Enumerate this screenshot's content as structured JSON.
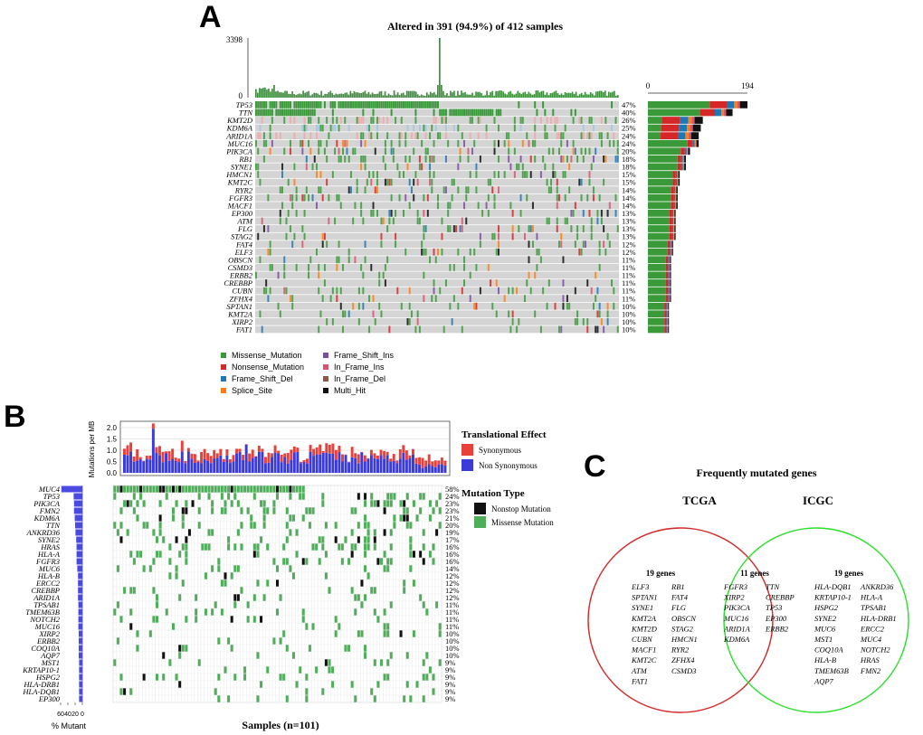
{
  "panel_labels": {
    "a": "A",
    "b": "B",
    "c": "C"
  },
  "panel_a": {
    "title": "Altered in 391 (94.9%) of 412 samples",
    "tmb_axis": {
      "max": "3398",
      "min": "0"
    },
    "bar_axis": {
      "min": "0",
      "max": "194"
    },
    "genes": [
      "TP53",
      "TTN",
      "KMT2D",
      "KDM6A",
      "ARID1A",
      "MUC16",
      "PIK3CA",
      "RB1",
      "SYNE1",
      "HMCN1",
      "KMT2C",
      "RYR2",
      "FGFR3",
      "MACF1",
      "EP300",
      "ATM",
      "FLG",
      "STAG2",
      "FAT4",
      "ELF3",
      "OBSCN",
      "CSMD3",
      "ERBB2",
      "CREBBP",
      "CUBN",
      "ZFHX4",
      "SPTAN1",
      "KMT2A",
      "XIRP2",
      "FAT1"
    ],
    "percents": [
      "47%",
      "40%",
      "26%",
      "25%",
      "24%",
      "24%",
      "20%",
      "18%",
      "18%",
      "15%",
      "15%",
      "14%",
      "14%",
      "14%",
      "13%",
      "13%",
      "13%",
      "13%",
      "12%",
      "12%",
      "11%",
      "11%",
      "11%",
      "11%",
      "11%",
      "11%",
      "10%",
      "10%",
      "10%",
      "10%"
    ],
    "counts": [
      194,
      165,
      107,
      103,
      99,
      99,
      82,
      74,
      74,
      62,
      62,
      58,
      58,
      58,
      54,
      54,
      54,
      54,
      49,
      49,
      45,
      45,
      45,
      45,
      45,
      45,
      41,
      41,
      41,
      41
    ],
    "legend": [
      {
        "label": "Missense_Mutation",
        "color": "#3a9a3a"
      },
      {
        "label": "Nonsense_Mutation",
        "color": "#d62728"
      },
      {
        "label": "Frame_Shift_Del",
        "color": "#1f77b4"
      },
      {
        "label": "Splice_Site",
        "color": "#ff7f0e"
      },
      {
        "label": "Frame_Shift_Ins",
        "color": "#7b4ea3"
      },
      {
        "label": "In_Frame_Ins",
        "color": "#d9536f"
      },
      {
        "label": "In_Frame_Del",
        "color": "#8c564b"
      },
      {
        "label": "Multi_Hit",
        "color": "#111111"
      }
    ]
  },
  "panel_b": {
    "tmb_ylabel": "Mutations per MB",
    "tmb_ticks": [
      "0.0",
      "0.5",
      "1.0",
      "1.5",
      "2.0"
    ],
    "effect_title": "Translational Effect",
    "effect_legend": [
      {
        "label": "Synonymous",
        "color": "#e8413c"
      },
      {
        "label": "Non Synonymous",
        "color": "#3b3bd9"
      }
    ],
    "type_title": "Mutation Type",
    "type_legend": [
      {
        "label": "Nonstop Mutation",
        "color": "#111111"
      },
      {
        "label": "Missense Mutation",
        "color": "#4fae5a"
      }
    ],
    "genes": [
      "MUC4",
      "TP53",
      "PIK3CA",
      "FMN2",
      "KDM6A",
      "TTN",
      "ANKRD36",
      "SYNE2",
      "HRAS",
      "HLA-A",
      "FGFR3",
      "MUC6",
      "HLA-B",
      "ERCC2",
      "CREBBP",
      "ARID1A",
      "TPSAB1",
      "TMEM63B",
      "NOTCH2",
      "MUC16",
      "XIRP2",
      "ERBB2",
      "COQ10A",
      "AQP7",
      "MST1",
      "KRTAP10-1",
      "HSPG2",
      "HLA-DRB1",
      "HLA-DQB1",
      "EP300"
    ],
    "percents": [
      "58%",
      "24%",
      "23%",
      "23%",
      "21%",
      "20%",
      "19%",
      "17%",
      "16%",
      "16%",
      "16%",
      "14%",
      "12%",
      "12%",
      "12%",
      "12%",
      "11%",
      "11%",
      "11%",
      "11%",
      "10%",
      "10%",
      "10%",
      "10%",
      "9%",
      "9%",
      "9%",
      "9%",
      "9%",
      "9%"
    ],
    "xlabel": "Samples (n=101)",
    "mutant_label": "% Mutant",
    "mutant_ticks": [
      "60",
      "40",
      "20",
      "0"
    ]
  },
  "panel_c": {
    "title": "Frequently mutated genes",
    "left_label": "TCGA",
    "right_label": "ICGC",
    "left_count": "19 genes",
    "center_count": "11 genes",
    "right_count": "19 genes",
    "left_genes": [
      "ELF3",
      "RB1",
      "SPTAN1",
      "FAT4",
      "SYNE1",
      "FLG",
      "KMT2A",
      "OBSCN",
      "KMT2D",
      "STAG2",
      "CUBN",
      "HMCN1",
      "MACF1",
      "RYR2",
      "KMT2C",
      "ZFHX4",
      "ATM",
      "CSMD3",
      "FAT1"
    ],
    "center_genes": [
      "FGFR3",
      "TTN",
      "XIRP2",
      "CREBBP",
      "PIK3CA",
      "TP53",
      "MUC16",
      "EP300",
      "ARID1A",
      "ERBB2",
      "KDM6A"
    ],
    "right_genes": [
      "HLA-DQB1",
      "ANKRD36",
      "KRTAP10-1",
      "HLA-A",
      "HSPG2",
      "TPSAB1",
      "SYNE2",
      "HLA-DRB1",
      "MUC6",
      "ERCC2",
      "MST1",
      "MUC4",
      "COQ10A",
      "NOTCH2",
      "HLA-B",
      "HRAS",
      "TMEM63B",
      "FMN2",
      "AQP7"
    ],
    "left_color": "#d42a2a",
    "right_color": "#2ee02e"
  }
}
